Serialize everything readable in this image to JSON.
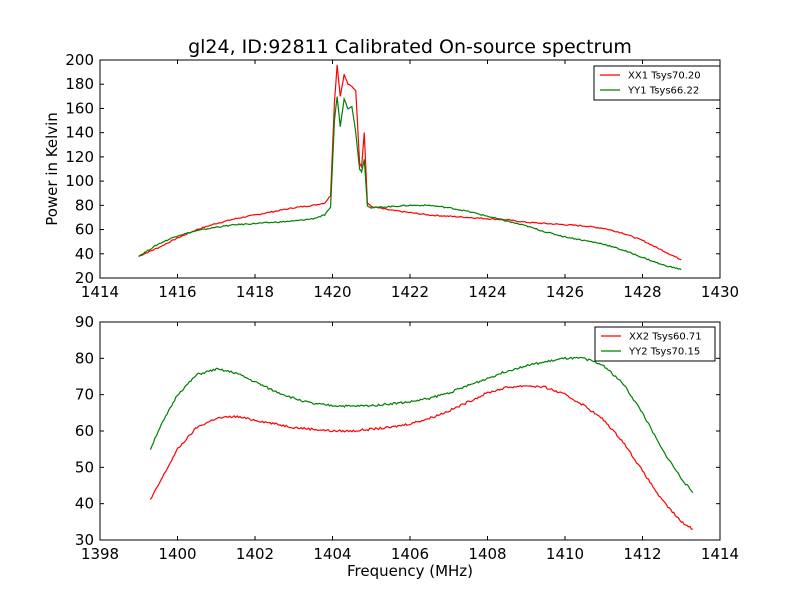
{
  "figure": {
    "title": "gl24, ID:92811 Calibrated On-source spectrum"
  },
  "chart_data": [
    {
      "type": "line",
      "title": "gl24, ID:92811 Calibrated On-source spectrum",
      "xlabel": "",
      "ylabel": "Power in Kelvin",
      "xlim": [
        1414,
        1430
      ],
      "ylim": [
        20,
        200
      ],
      "x_ticks": [
        1414,
        1416,
        1418,
        1420,
        1422,
        1424,
        1426,
        1428,
        1430
      ],
      "y_ticks": [
        20,
        40,
        60,
        80,
        100,
        120,
        140,
        160,
        180,
        200
      ],
      "grid": false,
      "legend_position": "top-right",
      "x": [
        1415.0,
        1415.5,
        1416.0,
        1416.5,
        1417.0,
        1417.5,
        1418.0,
        1418.5,
        1419.0,
        1419.5,
        1419.8,
        1419.95,
        1420.05,
        1420.12,
        1420.2,
        1420.3,
        1420.4,
        1420.5,
        1420.6,
        1420.7,
        1420.75,
        1420.82,
        1420.9,
        1421.0,
        1421.5,
        1422.0,
        1422.5,
        1423.0,
        1423.5,
        1424.0,
        1424.5,
        1425.0,
        1425.5,
        1426.0,
        1426.5,
        1427.0,
        1427.5,
        1428.0,
        1428.5,
        1429.0
      ],
      "series": [
        {
          "name": "XX1 Tsys70.20",
          "color": "#ff0000",
          "values": [
            38,
            45,
            53,
            60,
            65,
            69,
            72,
            75,
            78,
            80,
            82,
            88,
            165,
            196,
            170,
            188,
            180,
            178,
            175,
            115,
            112,
            140,
            82,
            79,
            76,
            74,
            72,
            71,
            70,
            69,
            68,
            66,
            65,
            64,
            63,
            61,
            57,
            51,
            43,
            35
          ]
        },
        {
          "name": "YY1 Tsys66.22",
          "color": "#008000",
          "values": [
            38,
            48,
            55,
            59,
            62,
            64,
            65,
            66,
            67,
            69,
            72,
            78,
            150,
            170,
            145,
            168,
            160,
            162,
            140,
            110,
            108,
            118,
            80,
            78,
            79,
            80,
            80,
            78,
            75,
            71,
            67,
            63,
            58,
            54,
            51,
            48,
            43,
            37,
            31,
            27
          ]
        }
      ]
    },
    {
      "type": "line",
      "title": "",
      "xlabel": "Frequency (MHz)",
      "ylabel": "",
      "xlim": [
        1398,
        1414
      ],
      "ylim": [
        30,
        90
      ],
      "x_ticks": [
        1398,
        1400,
        1402,
        1404,
        1406,
        1408,
        1410,
        1412,
        1414
      ],
      "y_ticks": [
        30,
        40,
        50,
        60,
        70,
        80,
        90
      ],
      "grid": false,
      "legend_position": "top-right",
      "x": [
        1399.3,
        1399.5,
        1400.0,
        1400.5,
        1401.0,
        1401.5,
        1402.0,
        1402.5,
        1403.0,
        1403.5,
        1404.0,
        1404.5,
        1405.0,
        1405.5,
        1406.0,
        1406.5,
        1407.0,
        1407.5,
        1408.0,
        1408.5,
        1409.0,
        1409.5,
        1410.0,
        1410.5,
        1411.0,
        1411.5,
        1412.0,
        1412.5,
        1413.0,
        1413.3
      ],
      "series": [
        {
          "name": "XX2 Tsys60.71",
          "color": "#ff0000",
          "values": [
            41,
            45,
            55,
            61,
            63.5,
            64,
            63,
            62,
            61,
            60.5,
            60,
            60,
            60.5,
            61,
            62,
            63.5,
            65.5,
            68,
            70.5,
            72,
            72.5,
            72,
            70,
            67,
            63,
            57,
            49,
            41,
            35,
            33
          ]
        },
        {
          "name": "YY2 Tsys70.15",
          "color": "#008000",
          "values": [
            55,
            60,
            70,
            75.5,
            77,
            76,
            73.5,
            71,
            69,
            67.5,
            67,
            66.8,
            67,
            67.5,
            68,
            69,
            70.5,
            72.5,
            74.5,
            76.5,
            78,
            79,
            80,
            80,
            78,
            73,
            65,
            55,
            47,
            43
          ]
        }
      ]
    }
  ]
}
